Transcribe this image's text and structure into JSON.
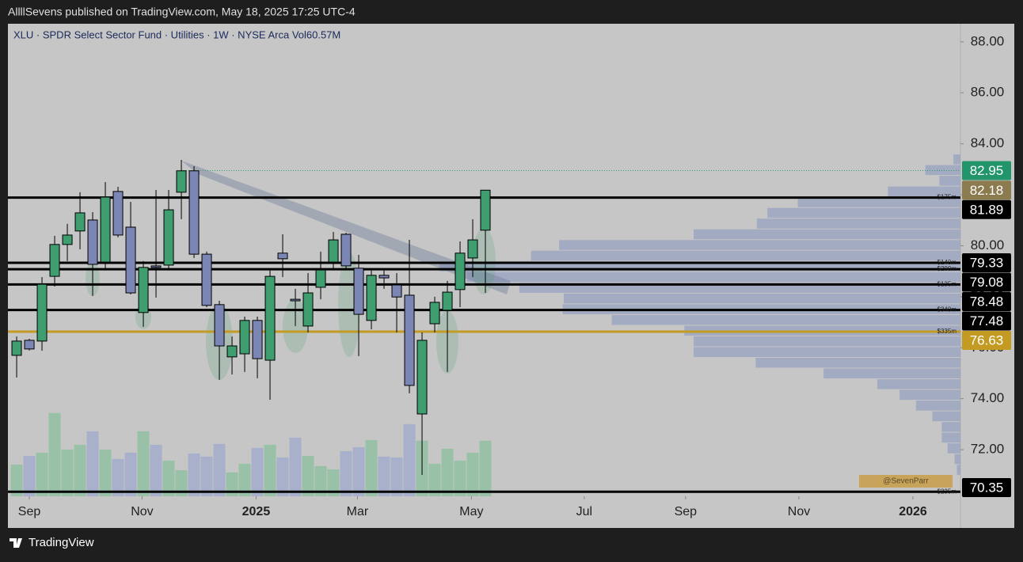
{
  "header": {
    "byline": "AllllSevens published on TradingView.com, May 18, 2025 17:25 UTC-4"
  },
  "footer": {
    "brand": "TradingView"
  },
  "watermark": "@SevenParr",
  "chart_data": {
    "type": "candlestick",
    "title": "XLU · SPDR Select Sector Fund · Utilities · 1W · NYSE Arca  Vol60.57M",
    "open": [
      75.7,
      76.29,
      76.26,
      78.8,
      80.05,
      80.58,
      81.01,
      79.36,
      82.13,
      80.73,
      77.38,
      79.21,
      79.24,
      82.1,
      82.94,
      79.67,
      77.69,
      75.64,
      75.76,
      77.07,
      75.51,
      79.71,
      77.9,
      76.85,
      78.37,
      79.36,
      80.45,
      79.12,
      77.07,
      78.84,
      78.46,
      78.06,
      73.4,
      76.94,
      77.47,
      78.28,
      79.52,
      80.61
    ],
    "high": [
      76.44,
      76.35,
      78.77,
      80.39,
      80.86,
      82.1,
      81.32,
      82.5,
      82.31,
      81.72,
      79.4,
      82.19,
      82.19,
      83.37,
      83.12,
      79.77,
      77.84,
      76.44,
      77.22,
      77.22,
      79.08,
      80.45,
      78.31,
      78.93,
      79.77,
      80.54,
      80.51,
      79.64,
      79.08,
      79.08,
      78.93,
      80.23,
      76.6,
      78.0,
      78.62,
      80.17,
      81.04,
      82.19
    ],
    "low": [
      74.83,
      75.89,
      75.88,
      78.4,
      79.4,
      79.86,
      78.03,
      79.08,
      80.33,
      78.09,
      76.82,
      77.97,
      79.08,
      81.04,
      79.52,
      77.59,
      74.74,
      74.95,
      75.05,
      74.8,
      73.96,
      78.77,
      76.85,
      76.6,
      77.9,
      79.08,
      79.08,
      75.67,
      76.72,
      78.31,
      76.6,
      74.21,
      71.01,
      76.6,
      75.05,
      77.59,
      78.77,
      78.15
    ],
    "close": [
      76.26,
      75.95,
      78.49,
      80.05,
      80.42,
      81.29,
      79.27,
      81.91,
      80.42,
      78.15,
      79.15,
      79.15,
      81.41,
      82.94,
      79.67,
      77.66,
      76.07,
      76.07,
      77.07,
      75.57,
      78.8,
      79.49,
      77.84,
      78.15,
      79.05,
      80.23,
      79.21,
      77.31,
      78.84,
      78.74,
      77.99,
      74.52,
      76.29,
      77.78,
      78.18,
      79.71,
      80.23,
      82.18
    ],
    "volume": [
      34.6,
      44.1,
      47.6,
      90.8,
      51.0,
      56.2,
      70.9,
      51.0,
      40.7,
      47.6,
      70.9,
      56.2,
      38.9,
      28.5,
      46.7,
      43.3,
      57.1,
      26.0,
      35.5,
      52.8,
      56.2,
      42.4,
      64.0,
      44.1,
      32.9,
      29.4,
      49.3,
      53.6,
      61.4,
      43.3,
      42.4,
      78.7,
      60.6,
      35.5,
      51.9,
      38.9,
      47.6,
      60.57
    ],
    "up_color": "#3f9e70",
    "down_color": "#7b86b5",
    "volume_up_color": "#8fc0a2",
    "volume_down_color": "#a3abcb",
    "volume_ylim": [
      0,
      120
    ],
    "xlim": [
      -0.69,
      74.5
    ],
    "xticks": [
      {
        "value": 1,
        "label": "Sep"
      },
      {
        "value": 9.9,
        "label": "Nov"
      },
      {
        "value": 18.9,
        "label": "2025"
      },
      {
        "value": 26.9,
        "label": "Mar"
      },
      {
        "value": 35.9,
        "label": "May"
      },
      {
        "value": 44.8,
        "label": "Jul"
      },
      {
        "value": 52.8,
        "label": "Sep"
      },
      {
        "value": 61.75,
        "label": "Nov"
      },
      {
        "value": 70.75,
        "label": "2026"
      }
    ],
    "ylim": [
      70.17,
      88.71
    ],
    "yticks": [
      {
        "value": 88,
        "label": "88.00"
      },
      {
        "value": 86,
        "label": "86.00"
      },
      {
        "value": 84,
        "label": "84.00"
      },
      {
        "value": 82,
        "label": "82.00"
      },
      {
        "value": 80,
        "label": "80.00"
      },
      {
        "value": 78,
        "label": "78.00"
      },
      {
        "value": 76,
        "label": "76.00"
      },
      {
        "value": 74,
        "label": "74.00"
      },
      {
        "value": 72,
        "label": "72.00"
      }
    ],
    "price_labels": [
      {
        "value": 82.95,
        "color": "#22956a",
        "line_color": "#2e9b6e",
        "line_style": "dotted"
      },
      {
        "value": 82.18,
        "color": "#8c7b4e"
      },
      {
        "value": 81.89,
        "color": "#000000",
        "line_color": "#000000",
        "tag": "$175m"
      },
      {
        "value": 79.33,
        "color": "#000000",
        "line_color": "#000000",
        "tag": "$140m"
      },
      {
        "value": 79.08,
        "color": "#000000",
        "line_color": "#000000",
        "tag": "$200m"
      },
      {
        "value": 78.48,
        "color": "#000000",
        "line_color": "#000000",
        "tag": "$135m"
      },
      {
        "value": 77.48,
        "color": "#000000",
        "line_color": "#000000",
        "tag": "$340m"
      },
      {
        "value": 76.63,
        "color": "#c39a22",
        "line_color": "#c39a22",
        "tag": "$335m"
      },
      {
        "value": 70.35,
        "color": "#000000",
        "line_color": "#000000",
        "tag": "$235m"
      }
    ],
    "profile": {
      "color": "#97a2c2",
      "xlim": [
        0,
        450
      ],
      "bins": [
        83.6,
        83.18,
        82.76,
        82.34,
        81.92,
        81.5,
        81.08,
        80.66,
        80.24,
        79.82,
        79.4,
        78.98,
        78.56,
        78.14,
        77.72,
        77.3,
        76.88,
        76.46,
        76.04,
        75.62,
        75.2,
        74.78,
        74.36,
        73.94,
        73.52,
        73.1,
        72.68,
        72.26,
        71.84,
        71.42,
        71.0
      ],
      "values": [
        6,
        30,
        18,
        62,
        139,
        165,
        174,
        228,
        343,
        367,
        445,
        422,
        377,
        339,
        340,
        298,
        236,
        228,
        228,
        175,
        117,
        71,
        52,
        38,
        24,
        16,
        16,
        11,
        5,
        3
      ]
    }
  }
}
